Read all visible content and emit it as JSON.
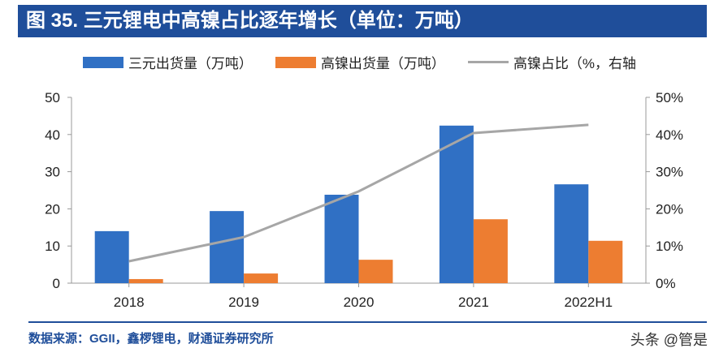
{
  "title": "图 35. 三元锂电中高镍占比逐年增长（单位：万吨）",
  "source": "数据来源：GGII，鑫椤锂电，财通证券研究所",
  "watermark": "头条 @管是",
  "chart_data": {
    "type": "bar",
    "categories": [
      "2018",
      "2019",
      "2020",
      "2021",
      "2022H1"
    ],
    "series": [
      {
        "name": "三元出货量（万吨）",
        "kind": "bar",
        "axis": "left",
        "color": "#3070c4",
        "values": [
          14.0,
          19.4,
          23.8,
          42.4,
          26.6
        ]
      },
      {
        "name": "高镍出货量（万吨）",
        "kind": "bar",
        "axis": "left",
        "color": "#ed7d31",
        "values": [
          1.1,
          2.6,
          6.3,
          17.2,
          11.4
        ]
      },
      {
        "name": "高镍占比（%，右轴",
        "kind": "line",
        "axis": "right",
        "color": "#a6a6a6",
        "values": [
          5.9,
          12.4,
          24.7,
          40.4,
          42.6
        ]
      }
    ],
    "ylim": [
      0,
      50
    ],
    "yticks": [
      "0",
      "10",
      "20",
      "30",
      "40",
      "50"
    ],
    "y2lim": [
      0,
      50
    ],
    "y2ticks": [
      "0%",
      "10%",
      "20%",
      "30%",
      "40%",
      "50%"
    ],
    "grid": false,
    "legend": "top"
  }
}
